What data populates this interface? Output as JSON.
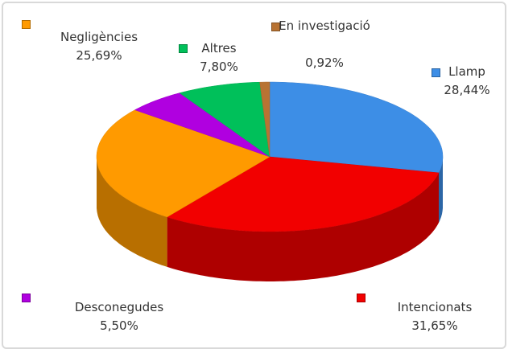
{
  "chart_data": {
    "type": "pie",
    "style": "3d",
    "categories": [
      "Llamp",
      "Intencionats",
      "Negligències",
      "Desconegudes",
      "Altres",
      "En investigació"
    ],
    "values": [
      28.44,
      31.65,
      25.69,
      5.5,
      7.8,
      0.92
    ],
    "value_labels": [
      "28,44%",
      "31,65%",
      "25,69%",
      "5,50%",
      "7,80%",
      "0,92%"
    ],
    "colors": [
      "#3d8ee6",
      "#f20000",
      "#ff9a00",
      "#b000e0",
      "#00c05a",
      "#b87333"
    ]
  }
}
